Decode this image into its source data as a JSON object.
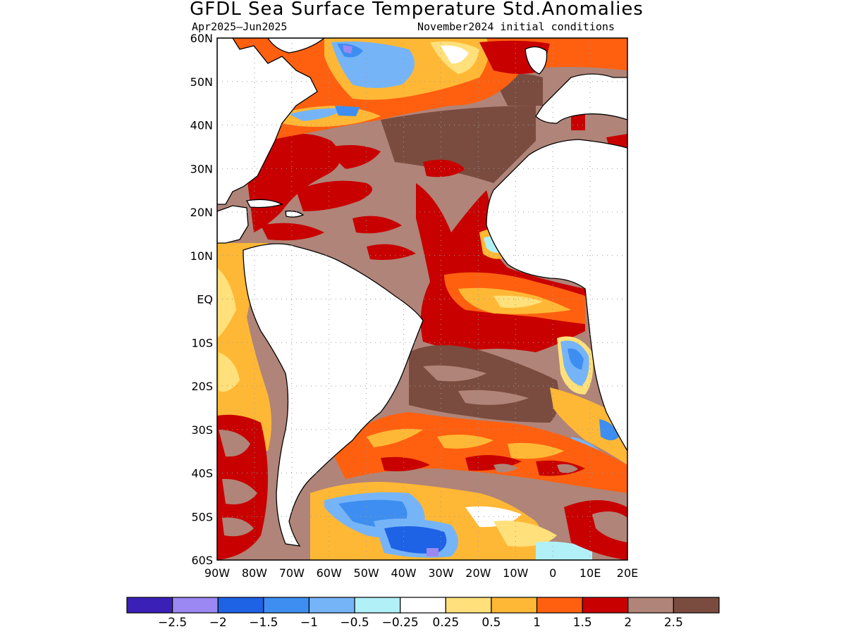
{
  "title": "GFDL Sea Surface Temperature Std.Anomalies",
  "subtitle_left": "Apr2025–Jun2025",
  "subtitle_right": "November2024 initial conditions",
  "map": {
    "lat_labels": [
      "60N",
      "50N",
      "40N",
      "30N",
      "20N",
      "10N",
      "EQ",
      "10S",
      "20S",
      "30S",
      "40S",
      "50S",
      "60S"
    ],
    "lon_labels": [
      "90W",
      "80W",
      "70W",
      "60W",
      "50W",
      "40W",
      "30W",
      "20W",
      "10W",
      "0",
      "10E",
      "20E"
    ],
    "land_color": "#ffffff",
    "coastline_color": "#000000",
    "grid": "dotted"
  },
  "colorbar": {
    "colors": [
      "#3b20b8",
      "#9b88f2",
      "#1e62e6",
      "#3d8ef0",
      "#76b4f8",
      "#b2f0f8",
      "#ffffff",
      "#ffe07a",
      "#ffb835",
      "#ff6010",
      "#c80000",
      "#b08478",
      "#7a4c40"
    ],
    "labels": [
      "−2.5",
      "−2",
      "−1.5",
      "−1",
      "−0.5",
      "−0.25",
      "0.25",
      "0.5",
      "1",
      "1.5",
      "2",
      "2.5"
    ]
  }
}
